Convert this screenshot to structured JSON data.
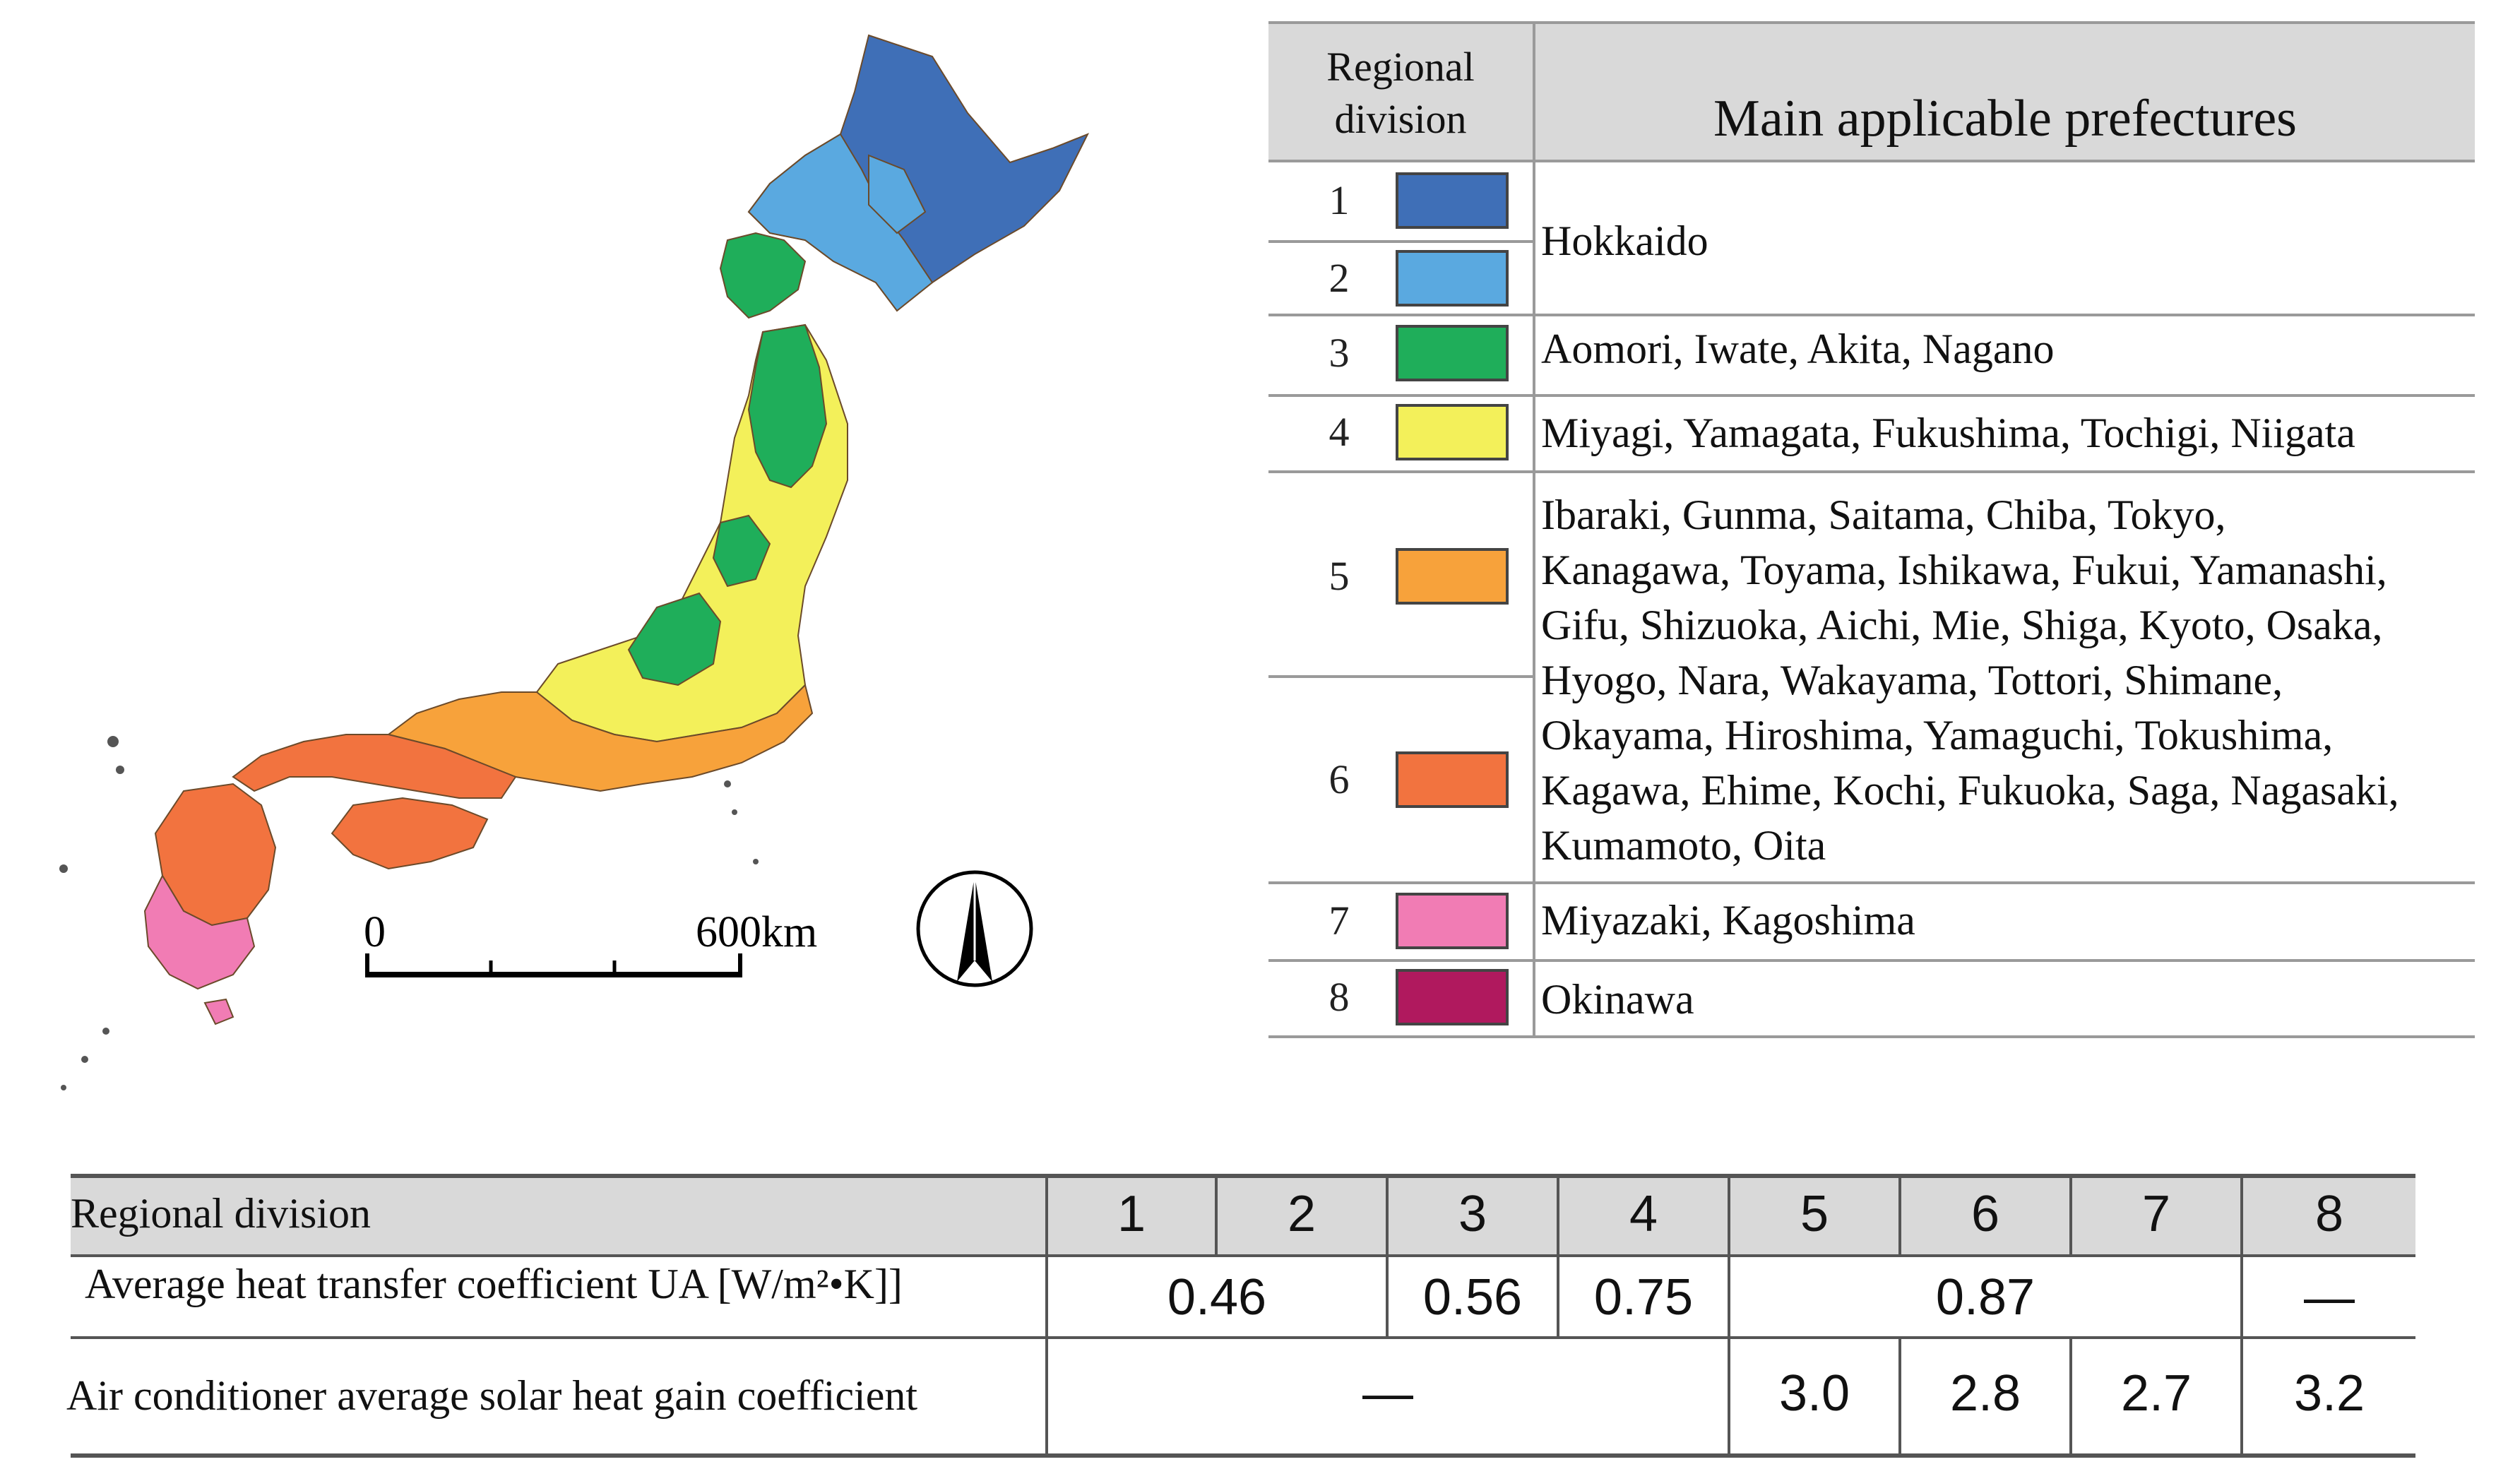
{
  "map": {
    "scale_start": "0",
    "scale_end": "600km",
    "region_colors": {
      "1": "#3f6fb7",
      "2": "#5aa9e0",
      "3": "#1fae5a",
      "4": "#f3f05a",
      "5": "#f7a23b",
      "6": "#f2733f",
      "7": "#f17cb4",
      "8": "#b0195e"
    }
  },
  "legend": {
    "header_division_line1": "Regional",
    "header_division_line2": "division",
    "header_prefectures": "Main applicable prefectures",
    "rows": [
      {
        "num": "1",
        "color": "#3f6fb7"
      },
      {
        "num": "2",
        "color": "#5aa9e0"
      },
      {
        "num": "3",
        "color": "#1fae5a"
      },
      {
        "num": "4",
        "color": "#f3f05a"
      },
      {
        "num": "5",
        "color": "#f7a23b"
      },
      {
        "num": "6",
        "color": "#f2733f"
      },
      {
        "num": "7",
        "color": "#f17cb4"
      },
      {
        "num": "8",
        "color": "#b0195e"
      }
    ],
    "prefectures": {
      "r12": "Hokkaido",
      "r3": "Aomori, Iwate, Akita, Nagano",
      "r4": "Miyagi, Yamagata, Fukushima, Tochigi, Niigata",
      "r56_lines": [
        "Ibaraki, Gunma, Saitama, Chiba, Tokyo,",
        "Kanagawa, Toyama, Ishikawa, Fukui, Yamanashi,",
        "Gifu, Shizuoka, Aichi, Mie, Shiga, Kyoto, Osaka,",
        "Hyogo, Nara, Wakayama, Tottori, Shimane,",
        "Okayama, Hiroshima, Yamaguchi, Tokushima,",
        "Kagawa, Ehime, Kochi, Fukuoka, Saga, Nagasaki,",
        "Kumamoto, Oita"
      ],
      "r7": "Miyazaki, Kagoshima",
      "r8": "Okinawa"
    }
  },
  "ua_table": {
    "header_label": "Regional division",
    "divisions": [
      "1",
      "2",
      "3",
      "4",
      "5",
      "6",
      "7",
      "8"
    ],
    "row1_label": "Average heat transfer coefficient UA [W/m²•K]]",
    "row1_values": {
      "d12": "0.46",
      "d3": "0.56",
      "d4": "0.75",
      "d567": "0.87",
      "d8": "—"
    },
    "row2_label": "Air conditioner average solar heat gain coefficient",
    "row2_values": {
      "d1to4": "—",
      "d5": "3.0",
      "d6": "2.8",
      "d7": "2.7",
      "d8": "3.2"
    }
  }
}
